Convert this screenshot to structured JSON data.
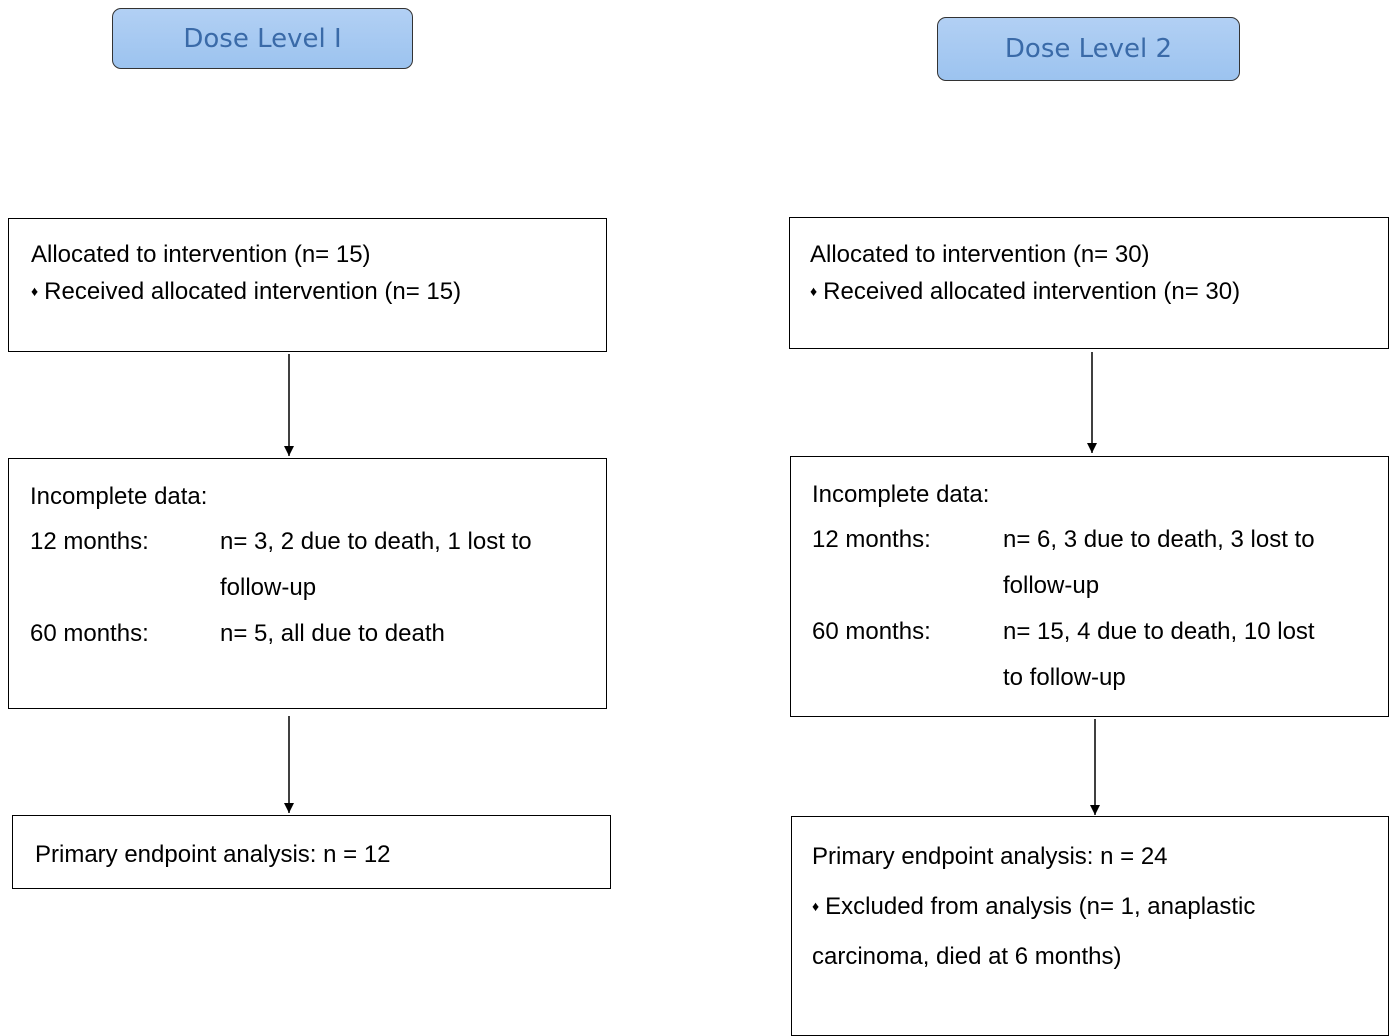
{
  "headers": {
    "left": "Dose Level I",
    "right": "Dose Level 2"
  },
  "left": {
    "allocated": "Allocated to intervention (n= 15)",
    "received": "Received allocated intervention (n= 15)",
    "incomplete_title": "Incomplete data:",
    "m12_label": "12 months:",
    "m12_value_1": "n= 3, 2 due to death, 1 lost to",
    "m12_value_2": "follow-up",
    "m60_label": "60 months:",
    "m60_value_1": "n= 5, all due to death",
    "primary": "Primary endpoint analysis: n = 12"
  },
  "right": {
    "allocated": "Allocated to intervention (n= 30)",
    "received": "Received allocated intervention (n= 30)",
    "incomplete_title": "Incomplete data:",
    "m12_label": "12 months:",
    "m12_value_1": "n= 6, 3 due to death, 3 lost to",
    "m12_value_2": "follow-up",
    "m60_label": "60 months:",
    "m60_value_1": "n= 15, 4 due to death, 10 lost",
    "m60_value_2": "to follow-up",
    "primary": "Primary endpoint analysis: n = 24",
    "excluded_1": "Excluded from analysis (n= 1, anaplastic",
    "excluded_2": "carcinoma, died at 6 months)"
  },
  "bullet_glyph": "♦"
}
